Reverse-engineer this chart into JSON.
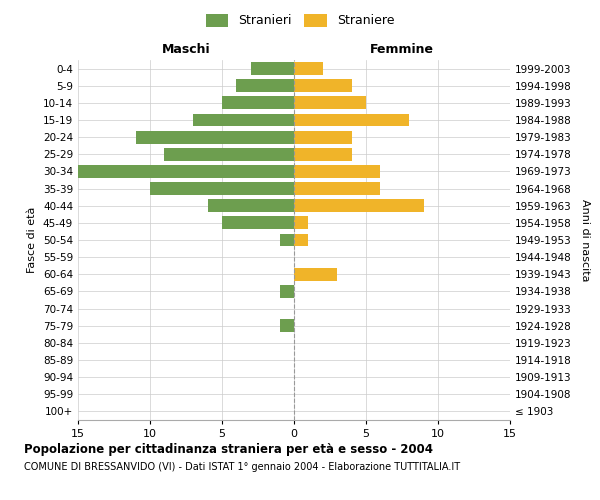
{
  "age_groups": [
    "100+",
    "95-99",
    "90-94",
    "85-89",
    "80-84",
    "75-79",
    "70-74",
    "65-69",
    "60-64",
    "55-59",
    "50-54",
    "45-49",
    "40-44",
    "35-39",
    "30-34",
    "25-29",
    "20-24",
    "15-19",
    "10-14",
    "5-9",
    "0-4"
  ],
  "birth_years": [
    "≤ 1903",
    "1904-1908",
    "1909-1913",
    "1914-1918",
    "1919-1923",
    "1924-1928",
    "1929-1933",
    "1934-1938",
    "1939-1943",
    "1944-1948",
    "1949-1953",
    "1954-1958",
    "1959-1963",
    "1964-1968",
    "1969-1973",
    "1974-1978",
    "1979-1983",
    "1984-1988",
    "1989-1993",
    "1994-1998",
    "1999-2003"
  ],
  "males": [
    0,
    0,
    0,
    0,
    0,
    1,
    0,
    1,
    0,
    0,
    1,
    5,
    6,
    10,
    15,
    9,
    11,
    7,
    5,
    4,
    3
  ],
  "females": [
    0,
    0,
    0,
    0,
    0,
    0,
    0,
    0,
    3,
    0,
    1,
    1,
    9,
    6,
    6,
    4,
    4,
    8,
    5,
    4,
    2
  ],
  "male_color": "#6d9e4f",
  "female_color": "#f0b429",
  "bar_height": 0.75,
  "xlim": 15,
  "title": "Popolazione per cittadinanza straniera per età e sesso - 2004",
  "subtitle": "COMUNE DI BRESSANVIDO (VI) - Dati ISTAT 1° gennaio 2004 - Elaborazione TUTTITALIA.IT",
  "ylabel_left": "Fasce di età",
  "ylabel_right": "Anni di nascita",
  "label_maschi": "Maschi",
  "label_femmine": "Femmine",
  "legend_stranieri": "Stranieri",
  "legend_straniere": "Straniere",
  "grid_color": "#cccccc",
  "background_color": "#ffffff"
}
